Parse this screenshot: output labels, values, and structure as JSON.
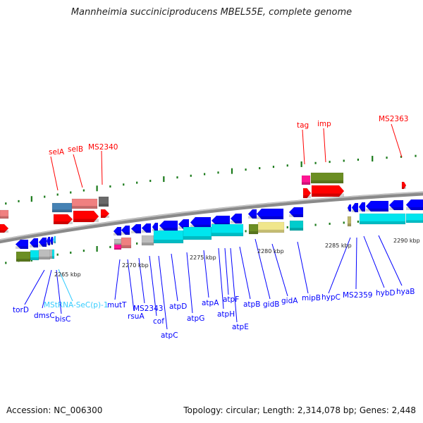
{
  "title": "Mannheimia succiniciproducens MBEL55E, complete genome",
  "footer": {
    "accession": "Accession: NC_006300",
    "summary": "Topology: circular; Length: 2,314,078 bp; Genes: 2,448"
  },
  "colors": {
    "forward_label": "#ff0000",
    "reverse_label": "#0000ff",
    "rna_label": "#33ccff",
    "tick": "#1a7a1a",
    "backbone": "#808080"
  },
  "scale_labels": [
    "2265 kbp",
    "2270 kbp",
    "2275 kbp",
    "2280 kbp",
    "2285 kbp",
    "2290 kbp"
  ],
  "forward_genes": [
    "selA",
    "selB",
    "MS2340",
    "tag",
    "imp",
    "MS2363"
  ],
  "reverse_genes": [
    "torD",
    "dmsC",
    "MStRNA-SeC(p)-1",
    "bisC",
    "mutT",
    "rsuA",
    "MS2343",
    "cof",
    "atpC",
    "atpD",
    "atpG",
    "atpA",
    "atpH",
    "atpF",
    "atpE",
    "atpB",
    "gidB",
    "gidA",
    "mipB",
    "hypC",
    "MS2359",
    "hybD",
    "hyaB"
  ]
}
